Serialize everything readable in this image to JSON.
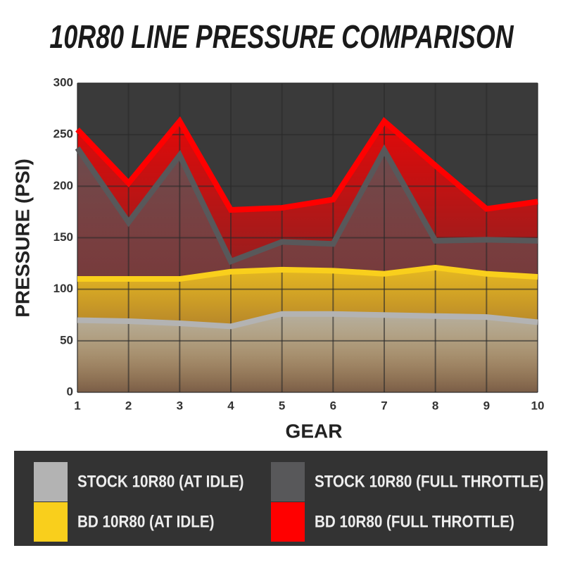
{
  "chart_data": {
    "type": "line",
    "title": "10R80 LINE PRESSURE COMPARISON",
    "x_label": "GEAR",
    "y_label": "PRESSURE (PSI)",
    "x": [
      1,
      2,
      3,
      4,
      5,
      6,
      7,
      8,
      9,
      10
    ],
    "xlim": [
      1,
      10
    ],
    "xticks": [
      1,
      2,
      3,
      4,
      5,
      6,
      7,
      8,
      9,
      10
    ],
    "ylim": [
      0,
      300
    ],
    "yticks": [
      0,
      50,
      100,
      150,
      200,
      250,
      300
    ],
    "grid": true,
    "series": [
      {
        "name": "BD 10R80 (FULL THROTTLE)",
        "color": "#ff0000",
        "values": [
          255,
          203,
          263,
          177,
          179,
          187,
          263,
          220,
          178,
          185
        ]
      },
      {
        "name": "STOCK 10R80 (FULL THROTTLE)",
        "color": "#58585a",
        "values": [
          237,
          165,
          230,
          127,
          146,
          144,
          235,
          147,
          148,
          147
        ]
      },
      {
        "name": "BD 10R80 (AT IDLE)",
        "color": "#f9cf1c",
        "values": [
          110,
          110,
          110,
          117,
          119,
          118,
          115,
          121,
          115,
          112
        ]
      },
      {
        "name": "STOCK 10R80 (AT IDLE)",
        "color": "#b3b3b3",
        "values": [
          70,
          69,
          67,
          64,
          76,
          76,
          75,
          74,
          73,
          68
        ]
      }
    ]
  }
}
